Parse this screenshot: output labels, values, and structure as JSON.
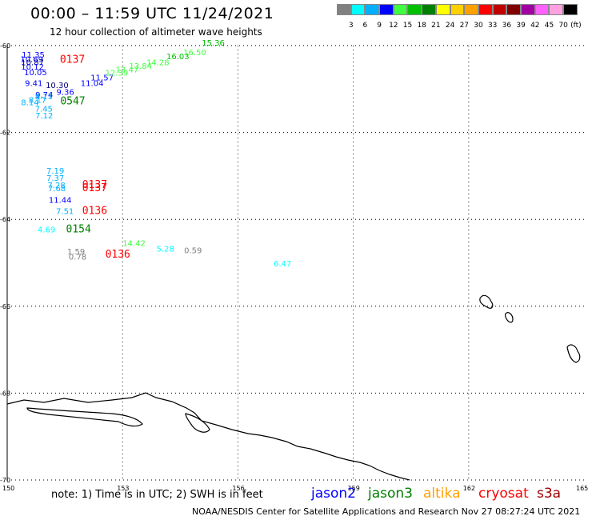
{
  "header": {
    "title": "00:00 – 11:59 UTC 11/24/2021",
    "subtitle": "12 hour collection of altimeter wave heights"
  },
  "legend": {
    "colors": [
      "#808080",
      "#00ffff",
      "#00b0ff",
      "#0000ff",
      "#40ff40",
      "#00c000",
      "#008000",
      "#ffff00",
      "#ffd000",
      "#ffa000",
      "#ff0000",
      "#c00000",
      "#800000",
      "#a000a0",
      "#ff60ff",
      "#ffa0e0",
      "#000000"
    ],
    "labels": [
      "3",
      "6",
      "9",
      "12",
      "15",
      "18",
      "21",
      "24",
      "27",
      "30",
      "33",
      "36",
      "39",
      "42",
      "45",
      "70",
      "(ft)"
    ]
  },
  "axes": {
    "lat_labels": [
      "-60",
      "-62",
      "-64",
      "-66",
      "-68",
      "-70"
    ],
    "lon_labels": [
      "150",
      "153",
      "156",
      "159",
      "162",
      "165"
    ]
  },
  "observations": [
    {
      "text": "11.35",
      "color": "#0000ff",
      "lon": 150.38,
      "lat": -60.28
    },
    {
      "text": "10.69",
      "color": "#0000ff",
      "lon": 150.34,
      "lat": -60.38
    },
    {
      "text": "10.87",
      "color": "#000080",
      "lon": 150.36,
      "lat": -60.45
    },
    {
      "text": "10.12",
      "color": "#0000ff",
      "lon": 150.36,
      "lat": -60.55
    },
    {
      "text": "10.05",
      "color": "#0000ff",
      "lon": 150.44,
      "lat": -60.68
    },
    {
      "text": "9.41",
      "color": "#0000ff",
      "lon": 150.46,
      "lat": -60.93
    },
    {
      "text": "9.74",
      "color": "#0000ff",
      "lon": 150.73,
      "lat": -61.2
    },
    {
      "text": "9.36",
      "color": "#0000ff",
      "lon": 151.28,
      "lat": -61.13
    },
    {
      "text": "10.30",
      "color": "#000080",
      "lon": 151.0,
      "lat": -60.98
    },
    {
      "text": "11.04",
      "color": "#0000ff",
      "lon": 151.91,
      "lat": -60.93
    },
    {
      "text": "11.57",
      "color": "#0000ff",
      "lon": 152.17,
      "lat": -60.8
    },
    {
      "text": "12.39",
      "color": "#40ff40",
      "lon": 152.55,
      "lat": -60.69
    },
    {
      "text": "13.47",
      "color": "#40ff40",
      "lon": 152.82,
      "lat": -60.62
    },
    {
      "text": "13.84",
      "color": "#40ff40",
      "lon": 153.17,
      "lat": -60.53
    },
    {
      "text": "14.28",
      "color": "#40ff40",
      "lon": 153.62,
      "lat": -60.45
    },
    {
      "text": "16.03",
      "color": "#00c000",
      "lon": 154.14,
      "lat": -60.31
    },
    {
      "text": "16.50",
      "color": "#40ff40",
      "lon": 154.58,
      "lat": -60.22
    },
    {
      "text": "15.36",
      "color": "#00c000",
      "lon": 155.06,
      "lat": -60.0
    },
    {
      "text": "8.14",
      "color": "#00b0ff",
      "lon": 150.36,
      "lat": -61.37
    },
    {
      "text": "8.17",
      "color": "#00b0ff",
      "lon": 150.56,
      "lat": -61.32
    },
    {
      "text": "8.11",
      "color": "#00b0ff",
      "lon": 150.72,
      "lat": -61.23
    },
    {
      "text": "7.45",
      "color": "#00b0ff",
      "lon": 150.72,
      "lat": -61.52
    },
    {
      "text": "7.12",
      "color": "#00b0ff",
      "lon": 150.73,
      "lat": -61.68
    },
    {
      "text": "7.19",
      "color": "#00b0ff",
      "lon": 151.02,
      "lat": -62.95
    },
    {
      "text": "7.37",
      "color": "#00b0ff",
      "lon": 151.02,
      "lat": -63.11
    },
    {
      "text": "7.28",
      "color": "#00b0ff",
      "lon": 151.05,
      "lat": -63.28
    },
    {
      "text": "7.68",
      "color": "#00b0ff",
      "lon": 151.06,
      "lat": -63.35
    },
    {
      "text": "11.44",
      "color": "#0000ff",
      "lon": 151.08,
      "lat": -63.62
    },
    {
      "text": "7.51",
      "color": "#00b0ff",
      "lon": 151.27,
      "lat": -63.88
    },
    {
      "text": "4.69",
      "color": "#00ffff",
      "lon": 150.79,
      "lat": -64.3
    },
    {
      "text": "14.42",
      "color": "#40ff40",
      "lon": 153.0,
      "lat": -64.61
    },
    {
      "text": "5.28",
      "color": "#00ffff",
      "lon": 153.88,
      "lat": -64.74
    },
    {
      "text": "0.59",
      "color": "#808080",
      "lon": 154.6,
      "lat": -64.78
    },
    {
      "text": "6.47",
      "color": "#00ffff",
      "lon": 156.93,
      "lat": -65.08
    },
    {
      "text": "1.59",
      "color": "#808080",
      "lon": 151.56,
      "lat": -64.81
    },
    {
      "text": "0.78",
      "color": "#808080",
      "lon": 151.6,
      "lat": -64.93
    }
  ],
  "passes": [
    {
      "text": "0137",
      "color": "#ff0000",
      "lon": 151.37,
      "lat": -60.4
    },
    {
      "text": "0547",
      "color": "#008000",
      "lon": 151.38,
      "lat": -61.35
    },
    {
      "text": "0137",
      "color": "#ff0000",
      "lon": 151.95,
      "lat": -63.28
    },
    {
      "text": "0137",
      "color": "#ff0000",
      "lon": 151.95,
      "lat": -63.35
    },
    {
      "text": "0136",
      "color": "#ff0000",
      "lon": 151.95,
      "lat": -63.88
    },
    {
      "text": "0154",
      "color": "#008000",
      "lon": 151.53,
      "lat": -64.3
    },
    {
      "text": "0136",
      "color": "#ff0000",
      "lon": 152.55,
      "lat": -64.88
    }
  ],
  "footer": {
    "note": "note: 1) Time is in UTC; 2) SWH is in feet",
    "satellites": [
      {
        "name": "jason2",
        "color": "#0000ff"
      },
      {
        "name": "jason3",
        "color": "#008000"
      },
      {
        "name": "altika",
        "color": "#ffa000"
      },
      {
        "name": "cryosat",
        "color": "#ff0000"
      },
      {
        "name": "s3a",
        "color": "#a00000"
      }
    ],
    "credit": "NOAA/NESDIS Center for Satellite Applications and Research    Nov 27 08:27:24 UTC 2021"
  }
}
